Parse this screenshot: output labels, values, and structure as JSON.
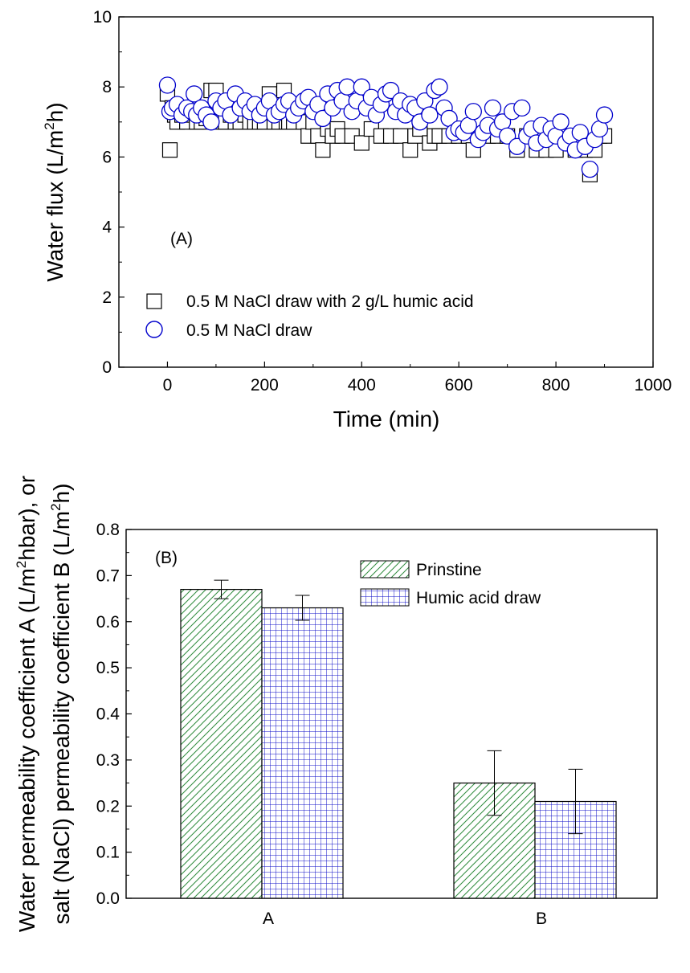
{
  "chart_data": [
    {
      "type": "scatter",
      "panel_label": "(A)",
      "xlabel": "Time (min)",
      "ylabel_main": "Water flux (L/m",
      "ylabel_sup": "2",
      "ylabel_end": "h)",
      "xlim": [
        -100,
        1000
      ],
      "ylim": [
        0,
        10
      ],
      "xticks": [
        0,
        200,
        400,
        600,
        800,
        1000
      ],
      "yticks": [
        0,
        2,
        4,
        6,
        8,
        10
      ],
      "legend_position": "bottom-left",
      "series": [
        {
          "name": "0.5 M NaCl draw with 2 g/L humic acid",
          "marker": "square",
          "color": "#000000",
          "x": [
            0,
            5,
            10,
            15,
            20,
            25,
            30,
            40,
            50,
            60,
            70,
            80,
            90,
            95,
            100,
            110,
            120,
            130,
            140,
            150,
            160,
            170,
            180,
            190,
            200,
            210,
            220,
            230,
            240,
            245,
            250,
            260,
            270,
            280,
            290,
            300,
            310,
            320,
            330,
            340,
            350,
            360,
            380,
            400,
            420,
            440,
            460,
            480,
            500,
            510,
            520,
            540,
            550,
            560,
            580,
            600,
            620,
            630,
            640,
            660,
            680,
            700,
            720,
            740,
            760,
            780,
            800,
            820,
            840,
            860,
            870,
            880,
            890,
            900
          ],
          "y": [
            7.8,
            6.2,
            7.4,
            7.2,
            7.0,
            7.3,
            7.2,
            7.0,
            7.2,
            7.0,
            7.0,
            7.1,
            7.9,
            7.2,
            7.9,
            7.0,
            7.0,
            7.2,
            7.0,
            7.0,
            7.2,
            7.0,
            7.0,
            7.0,
            7.0,
            7.8,
            7.0,
            7.0,
            7.9,
            7.0,
            7.0,
            7.0,
            7.2,
            7.0,
            6.6,
            7.0,
            6.6,
            6.2,
            6.8,
            6.6,
            6.8,
            6.6,
            6.6,
            6.4,
            6.8,
            6.6,
            6.6,
            6.6,
            6.2,
            6.6,
            6.8,
            6.4,
            6.6,
            6.6,
            6.6,
            6.6,
            6.6,
            6.2,
            6.6,
            6.6,
            6.6,
            6.6,
            6.2,
            6.6,
            6.2,
            6.2,
            6.2,
            6.6,
            6.2,
            6.2,
            5.5,
            6.2,
            6.6,
            6.6
          ]
        },
        {
          "name": "0.5 M NaCl draw",
          "marker": "circle",
          "color": "#0000cc",
          "x": [
            0,
            5,
            10,
            20,
            30,
            40,
            50,
            55,
            60,
            70,
            80,
            90,
            100,
            110,
            120,
            130,
            140,
            150,
            160,
            170,
            180,
            190,
            200,
            210,
            220,
            230,
            240,
            250,
            260,
            270,
            280,
            290,
            300,
            310,
            320,
            330,
            340,
            350,
            360,
            370,
            380,
            390,
            400,
            410,
            420,
            430,
            440,
            450,
            460,
            470,
            480,
            490,
            500,
            510,
            520,
            530,
            540,
            550,
            560,
            570,
            580,
            590,
            600,
            610,
            620,
            630,
            640,
            650,
            660,
            670,
            680,
            690,
            700,
            710,
            720,
            730,
            740,
            750,
            760,
            770,
            780,
            790,
            800,
            810,
            820,
            830,
            840,
            850,
            860,
            870,
            880,
            890,
            900
          ],
          "y": [
            8.05,
            7.3,
            7.4,
            7.5,
            7.2,
            7.4,
            7.3,
            7.8,
            7.2,
            7.4,
            7.2,
            7.0,
            7.6,
            7.4,
            7.6,
            7.2,
            7.8,
            7.4,
            7.6,
            7.3,
            7.5,
            7.2,
            7.4,
            7.6,
            7.2,
            7.3,
            7.5,
            7.6,
            7.2,
            7.4,
            7.6,
            7.7,
            7.3,
            7.5,
            7.1,
            7.8,
            7.4,
            7.9,
            7.6,
            8.0,
            7.3,
            7.6,
            8.0,
            7.4,
            7.7,
            7.2,
            7.5,
            7.8,
            7.9,
            7.3,
            7.6,
            7.2,
            7.5,
            7.4,
            7.0,
            7.6,
            7.2,
            7.9,
            8.0,
            7.4,
            7.1,
            6.7,
            6.8,
            6.7,
            6.9,
            7.3,
            6.5,
            6.7,
            6.9,
            7.4,
            6.8,
            7.0,
            6.6,
            7.3,
            6.3,
            7.4,
            6.6,
            6.8,
            6.4,
            6.9,
            6.5,
            6.8,
            6.6,
            7.0,
            6.4,
            6.6,
            6.2,
            6.7,
            6.3,
            5.65,
            6.5,
            6.8,
            7.2
          ]
        }
      ]
    },
    {
      "type": "bar",
      "panel_label": "(B)",
      "ylabel_line1_main": "Water permeability coefficient A (L/m",
      "ylabel_line1_sup": "2",
      "ylabel_line1_end": "hbar), or",
      "ylabel_line2_main": "salt (NaCl) permeability coefficient B (L/m",
      "ylabel_line2_sup": "2",
      "ylabel_line2_end": "h)",
      "categories": [
        "A",
        "B"
      ],
      "ylim": [
        0,
        0.8
      ],
      "yticks": [
        "0.0",
        "0.1",
        "0.2",
        "0.3",
        "0.4",
        "0.5",
        "0.6",
        "0.7",
        "0.8"
      ],
      "legend_position": "top-right",
      "series": [
        {
          "name": "Prinstine",
          "pattern": "diagonal-hatch",
          "color": "#2e8b3c",
          "values": [
            0.67,
            0.25
          ],
          "errors": [
            0.02,
            0.07
          ]
        },
        {
          "name": "Humic acid draw",
          "pattern": "grid",
          "color": "#1010c8",
          "values": [
            0.63,
            0.21
          ],
          "errors": [
            0.027,
            0.07
          ]
        }
      ]
    }
  ]
}
